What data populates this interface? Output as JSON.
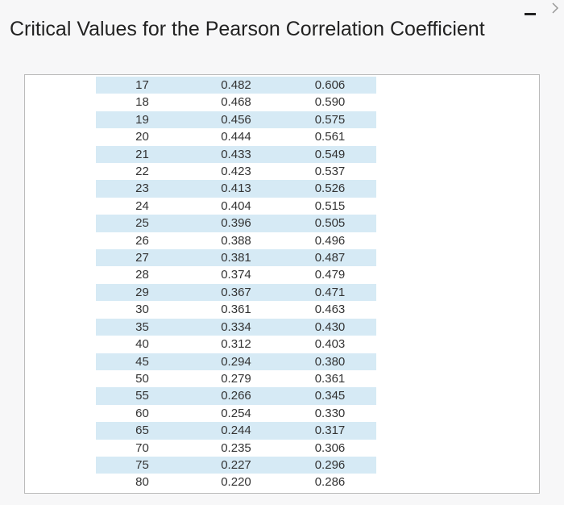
{
  "title": "Critical Values for the Pearson Correlation Coefficient",
  "table": {
    "rows": [
      [
        "17",
        "0.482",
        "0.606"
      ],
      [
        "18",
        "0.468",
        "0.590"
      ],
      [
        "19",
        "0.456",
        "0.575"
      ],
      [
        "20",
        "0.444",
        "0.561"
      ],
      [
        "21",
        "0.433",
        "0.549"
      ],
      [
        "22",
        "0.423",
        "0.537"
      ],
      [
        "23",
        "0.413",
        "0.526"
      ],
      [
        "24",
        "0.404",
        "0.515"
      ],
      [
        "25",
        "0.396",
        "0.505"
      ],
      [
        "26",
        "0.388",
        "0.496"
      ],
      [
        "27",
        "0.381",
        "0.487"
      ],
      [
        "28",
        "0.374",
        "0.479"
      ],
      [
        "29",
        "0.367",
        "0.471"
      ],
      [
        "30",
        "0.361",
        "0.463"
      ],
      [
        "35",
        "0.334",
        "0.430"
      ],
      [
        "40",
        "0.312",
        "0.403"
      ],
      [
        "45",
        "0.294",
        "0.380"
      ],
      [
        "50",
        "0.279",
        "0.361"
      ],
      [
        "55",
        "0.266",
        "0.345"
      ],
      [
        "60",
        "0.254",
        "0.330"
      ],
      [
        "65",
        "0.244",
        "0.317"
      ],
      [
        "70",
        "0.235",
        "0.306"
      ],
      [
        "75",
        "0.227",
        "0.296"
      ],
      [
        "80",
        "0.220",
        "0.286"
      ]
    ]
  }
}
